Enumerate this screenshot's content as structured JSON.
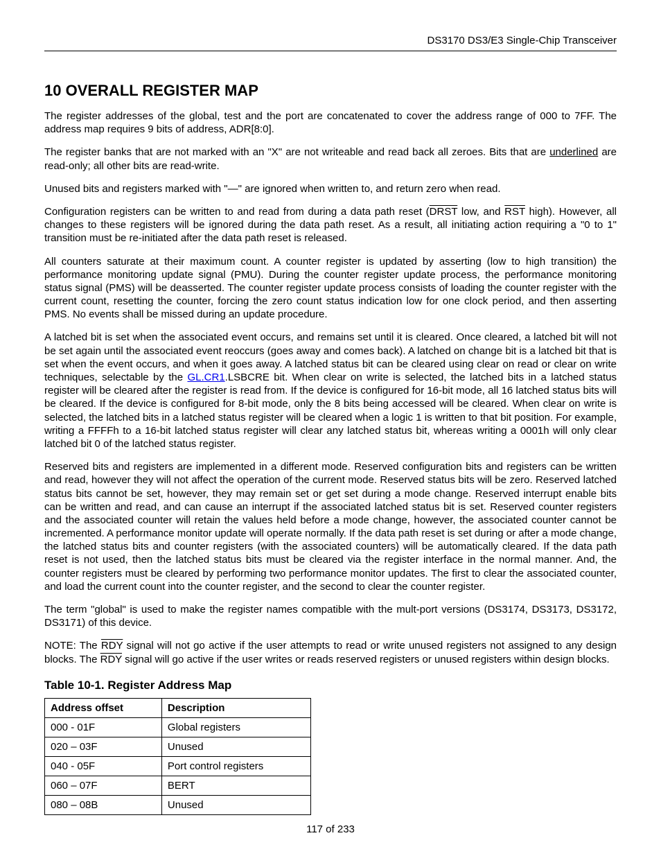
{
  "header": {
    "title": "DS3170 DS3/E3 Single-Chip Transceiver"
  },
  "section": {
    "heading": "10 OVERALL REGISTER MAP"
  },
  "paragraphs": {
    "p1": "The register addresses of the global, test and the port are concatenated to cover the address range of 000 to 7FF. The address map requires 9 bits of address, ADR[8:0].",
    "p2a": "The register banks that are not marked with an \"X\" are not writeable and read back all zeroes.  Bits that are ",
    "p2_underlined": "underlined",
    "p2b": " are read-only; all other bits are read-write.",
    "p3": "Unused bits and registers marked with \"—\" are ignored when written to, and return zero when read.",
    "p4a": "Configuration registers can be written to and read from during a data path reset (",
    "p4_drst": "DRST",
    "p4b": " low, and ",
    "p4_rst": "RST",
    "p4c": " high). However, all changes to these registers will be ignored during the data path reset. As a result, all initiating action requiring a \"0 to 1\" transition must be re-initiated after the data path reset is released.",
    "p5": "All counters saturate at their maximum count. A counter register is updated by asserting (low to high transition) the performance monitoring update signal (PMU). During the counter register update process, the performance monitoring status signal (PMS) will be deasserted. The counter register update process consists of loading the counter register with the current count, resetting the counter, forcing the zero count status indication low for one clock period, and then asserting PMS. No events shall be missed during an update procedure.",
    "p6a": "A latched bit is set when the associated event occurs, and remains set until it is cleared. Once cleared, a latched bit will not be set again until the associated event reoccurs (goes away and comes back). A latched on change bit is a latched bit that is set when the event occurs, and when it goes away. A latched status bit can be cleared using clear on read or clear on write techniques, selectable by the ",
    "p6_link": "GL.CR1",
    "p6b": ".LSBCRE bit. When clear on write is selected, the latched bits in a latched status register will be cleared after the register is read from. If the device is configured for 16-bit mode, all 16 latched status bits will be cleared. If the device is configured for 8-bit mode, only the 8 bits being accessed will be cleared. When clear on write is selected, the latched bits in a latched status register will be cleared when a logic 1 is written to that bit position. For example, writing a FFFFh to a 16-bit latched status register will clear any latched status bit, whereas writing a 0001h will only clear latched bit 0 of the latched status register.",
    "p7": "Reserved bits and registers are implemented in a different mode. Reserved configuration bits and registers can be written and read, however they will not affect the operation of the current mode. Reserved status bits will be zero. Reserved latched status bits cannot be set, however, they may remain set or get set during a mode change. Reserved interrupt enable bits can be written and read, and can cause an interrupt if the associated latched status bit is set. Reserved counter registers and the associated counter will retain the values held before a mode change, however, the associated counter cannot be incremented. A performance monitor update will operate normally. If the data path reset is set during or after a mode change, the latched status bits and counter registers (with the associated counters) will be automatically cleared. If the data path reset is not used, then the latched status bits must be cleared via the register interface in the normal manner. And, the counter registers must be cleared by performing two performance monitor updates. The first to clear the associated counter, and load the current count into the counter register, and the second to clear the counter register.",
    "p8": "The term \"global\" is used to make the register names compatible with the mult-port versions (DS3174, DS3173, DS3172, DS3171) of this device.",
    "p9a": "NOTE: The ",
    "p9_rdy1": "RDY",
    "p9b": " signal will not go active if the user attempts to read or write unused registers not assigned to any design blocks. The ",
    "p9_rdy2": "RDY",
    "p9c": " signal will go active if the user writes or reads reserved registers or unused registers within design blocks."
  },
  "table": {
    "title": "Table 10-1. Register Address Map",
    "columns": [
      "Address offset",
      "Description"
    ],
    "rows": [
      [
        "000 - 01F",
        "Global registers"
      ],
      [
        "020 – 03F",
        "Unused"
      ],
      [
        "040 - 05F",
        "Port control registers"
      ],
      [
        "060 – 07F",
        "BERT"
      ],
      [
        "080 – 08B",
        "Unused"
      ]
    ]
  },
  "footer": {
    "page": "117 of 233"
  }
}
